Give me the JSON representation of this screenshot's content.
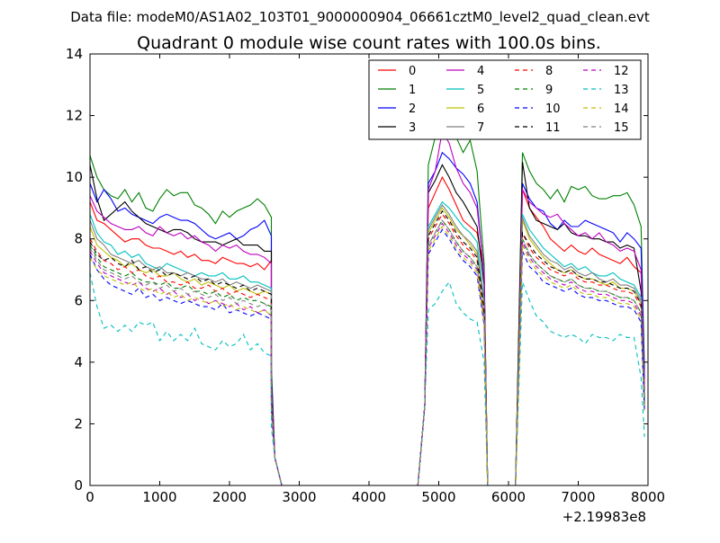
{
  "header": {
    "data_file": "Data file: modeM0/AS1A02_103T01_9000000904_06661cztM0_level2_quad_clean.evt"
  },
  "chart_data": {
    "type": "line",
    "title": "Quadrant 0 module wise count rates with 100.0s bins.",
    "xlabel": "",
    "ylabel": "",
    "x_offset_label": "+2.19983e8",
    "xlim": [
      0,
      8000
    ],
    "ylim": [
      0,
      14
    ],
    "xticks": [
      0,
      1000,
      2000,
      3000,
      4000,
      5000,
      6000,
      7000,
      8000
    ],
    "yticks": [
      0,
      2,
      4,
      6,
      8,
      10,
      12,
      14
    ],
    "grid": false,
    "legend_position": "top-right",
    "legend_columns": 4,
    "segments": [
      {
        "x_start": 0,
        "step": 100,
        "count": 27
      },
      {
        "x_end_drop": [
          2600,
          2700,
          2750
        ]
      },
      {
        "x_start": 4850,
        "step": 100,
        "count": 9
      },
      {
        "x_start": 6200,
        "step": 100,
        "count": 18
      }
    ],
    "series": [
      {
        "name": "0",
        "color": "#ff0000",
        "dash": "solid",
        "a": [
          9.2,
          8.6,
          8.5,
          8.3,
          8.1,
          7.9,
          8.0,
          8.0,
          7.8,
          7.7,
          7.7,
          7.6,
          7.5,
          7.6,
          7.4,
          7.5,
          7.3,
          7.3,
          7.2,
          7.4,
          7.3,
          7.2,
          7.2,
          7.1,
          7.2,
          7.0,
          7.3
        ],
        "b": [
          9.0,
          9.5,
          10.0,
          9.6,
          9.1,
          8.6,
          8.4,
          8.2,
          7.0
        ],
        "c": [
          9.6,
          9.0,
          8.7,
          8.4,
          8.0,
          7.8,
          7.6,
          7.8,
          7.6,
          7.5,
          7.7,
          7.5,
          7.4,
          7.3,
          7.2,
          7.4,
          7.1,
          6.9
        ]
      },
      {
        "name": "1",
        "color": "#008000",
        "dash": "solid",
        "a": [
          10.7,
          10.0,
          9.6,
          9.4,
          9.3,
          9.6,
          9.2,
          9.5,
          9.0,
          8.9,
          9.3,
          9.6,
          9.4,
          9.5,
          9.5,
          9.1,
          9.0,
          8.8,
          8.5,
          8.9,
          8.7,
          8.9,
          9.0,
          9.1,
          9.3,
          9.1,
          8.7
        ],
        "b": [
          10.4,
          11.3,
          12.5,
          11.8,
          11.3,
          10.8,
          11.2,
          10.2,
          7.2
        ],
        "c": [
          10.8,
          10.2,
          9.8,
          9.6,
          9.3,
          9.6,
          9.2,
          9.7,
          9.6,
          9.7,
          9.4,
          9.3,
          9.3,
          9.4,
          9.4,
          9.5,
          9.1,
          8.4
        ]
      },
      {
        "name": "2",
        "color": "#0000ff",
        "dash": "solid",
        "a": [
          9.8,
          9.2,
          9.6,
          9.3,
          8.9,
          9.0,
          8.8,
          8.7,
          8.6,
          8.5,
          8.7,
          8.8,
          8.7,
          8.6,
          8.6,
          8.5,
          8.3,
          8.1,
          8.0,
          8.1,
          8.2,
          8.0,
          8.1,
          8.3,
          8.4,
          8.6,
          8.1
        ],
        "b": [
          9.8,
          10.2,
          10.8,
          10.6,
          10.3,
          10.1,
          9.8,
          9.2,
          6.8
        ],
        "c": [
          9.8,
          9.3,
          9.0,
          8.9,
          8.5,
          8.3,
          8.6,
          8.4,
          8.4,
          8.6,
          8.5,
          8.4,
          8.3,
          8.2,
          7.9,
          8.2,
          8.0,
          7.7
        ]
      },
      {
        "name": "3",
        "color": "#000000",
        "dash": "solid",
        "a": [
          10.4,
          9.3,
          8.6,
          8.8,
          9.0,
          9.2,
          8.9,
          8.7,
          8.5,
          8.4,
          8.3,
          8.2,
          8.3,
          8.3,
          8.2,
          8.0,
          7.9,
          7.9,
          7.9,
          7.8,
          7.9,
          8.0,
          7.8,
          7.8,
          7.8,
          7.6,
          7.6
        ],
        "b": [
          9.5,
          9.9,
          10.4,
          10.0,
          9.5,
          9.2,
          8.8,
          8.4,
          6.5
        ],
        "c": [
          10.5,
          9.0,
          8.6,
          8.5,
          8.4,
          8.3,
          8.5,
          8.2,
          8.1,
          8.1,
          8.0,
          8.0,
          7.9,
          7.9,
          7.7,
          7.8,
          7.7,
          6.3
        ]
      },
      {
        "name": "4",
        "color": "#bf00bf",
        "dash": "solid",
        "a": [
          9.4,
          8.9,
          8.7,
          8.5,
          8.4,
          8.3,
          8.3,
          8.4,
          8.2,
          8.1,
          8.4,
          8.2,
          8.1,
          8.2,
          8.0,
          8.1,
          7.9,
          7.8,
          7.6,
          7.8,
          7.7,
          7.8,
          7.6,
          7.5,
          7.5,
          7.4,
          7.2
        ],
        "b": [
          9.6,
          10.2,
          11.5,
          11.1,
          10.3,
          9.8,
          9.5,
          9.0,
          6.9
        ],
        "c": [
          9.6,
          9.2,
          9.0,
          8.8,
          8.7,
          8.8,
          8.5,
          8.3,
          8.1,
          8.2,
          8.0,
          8.2,
          7.9,
          7.8,
          7.6,
          7.7,
          7.6,
          7.0
        ]
      },
      {
        "name": "5",
        "color": "#00bfbf",
        "dash": "solid",
        "a": [
          8.8,
          8.2,
          7.9,
          7.8,
          7.5,
          7.6,
          7.4,
          7.5,
          7.2,
          7.1,
          7.0,
          7.2,
          7.1,
          7.0,
          6.9,
          6.8,
          6.9,
          6.8,
          6.8,
          6.9,
          6.7,
          6.7,
          6.8,
          6.6,
          6.6,
          6.5,
          6.4
        ],
        "b": [
          8.4,
          8.8,
          9.2,
          9.0,
          8.7,
          8.4,
          8.2,
          7.9,
          6.0
        ],
        "c": [
          8.8,
          8.3,
          8.0,
          7.7,
          7.5,
          7.3,
          7.1,
          7.2,
          7.0,
          7.1,
          6.9,
          6.8,
          6.8,
          6.9,
          6.7,
          6.6,
          6.5,
          6.1
        ]
      },
      {
        "name": "6",
        "color": "#bfbf00",
        "dash": "solid",
        "a": [
          8.4,
          7.8,
          7.6,
          7.4,
          7.3,
          7.1,
          7.2,
          7.0,
          6.9,
          7.0,
          6.8,
          6.8,
          6.9,
          6.7,
          6.6,
          6.7,
          6.5,
          6.6,
          6.5,
          6.4,
          6.5,
          6.3,
          6.4,
          6.3,
          6.2,
          6.3,
          6.2
        ],
        "b": [
          8.2,
          8.6,
          9.0,
          8.7,
          8.3,
          8.1,
          7.8,
          7.5,
          5.8
        ],
        "c": [
          8.6,
          8.0,
          7.7,
          7.4,
          7.2,
          7.0,
          6.9,
          7.0,
          6.8,
          6.7,
          6.7,
          6.6,
          6.5,
          6.6,
          6.4,
          6.4,
          6.3,
          5.9
        ]
      },
      {
        "name": "7",
        "color": "#808080",
        "dash": "solid",
        "a": [
          8.6,
          8.0,
          7.8,
          7.5,
          7.4,
          7.3,
          7.2,
          7.3,
          7.1,
          7.0,
          7.1,
          6.9,
          6.9,
          6.8,
          6.9,
          6.8,
          6.7,
          6.7,
          6.6,
          6.7,
          6.5,
          6.6,
          6.5,
          6.4,
          6.5,
          6.4,
          6.3
        ],
        "b": [
          8.3,
          8.7,
          9.1,
          8.8,
          8.4,
          8.1,
          7.9,
          7.6,
          5.9
        ],
        "c": [
          8.7,
          8.1,
          7.8,
          7.5,
          7.3,
          7.2,
          7.0,
          7.1,
          6.9,
          6.8,
          6.9,
          6.7,
          6.6,
          6.7,
          6.5,
          6.5,
          6.4,
          6.0
        ]
      },
      {
        "name": "8",
        "color": "#ff0000",
        "dash": "dashed",
        "a": [
          8.0,
          7.6,
          7.3,
          7.2,
          7.0,
          7.1,
          6.9,
          7.0,
          6.8,
          6.7,
          6.8,
          6.6,
          6.6,
          6.5,
          6.6,
          6.4,
          6.4,
          6.5,
          6.3,
          6.4,
          6.2,
          6.3,
          6.2,
          6.1,
          6.2,
          6.1,
          6.0
        ],
        "b": [
          8.0,
          8.4,
          8.8,
          8.5,
          8.1,
          7.8,
          7.6,
          7.3,
          5.6
        ],
        "c": [
          8.2,
          7.7,
          7.4,
          7.2,
          7.0,
          6.9,
          6.8,
          6.9,
          6.7,
          6.6,
          6.6,
          6.5,
          6.5,
          6.4,
          6.3,
          6.3,
          6.2,
          5.8
        ]
      },
      {
        "name": "9",
        "color": "#008000",
        "dash": "dashed",
        "a": [
          7.8,
          7.4,
          7.1,
          7.0,
          6.9,
          6.8,
          6.9,
          6.7,
          6.6,
          6.6,
          6.5,
          6.6,
          6.4,
          6.4,
          6.5,
          6.3,
          6.3,
          6.2,
          6.3,
          6.1,
          6.2,
          6.0,
          6.1,
          6.0,
          6.0,
          5.9,
          5.8
        ],
        "b": [
          7.8,
          8.2,
          8.6,
          8.3,
          7.9,
          7.6,
          7.4,
          7.1,
          5.4
        ],
        "c": [
          8.0,
          7.5,
          7.2,
          7.0,
          6.8,
          6.7,
          6.6,
          6.7,
          6.5,
          6.4,
          6.4,
          6.3,
          6.3,
          6.2,
          6.1,
          6.1,
          6.0,
          5.6
        ]
      },
      {
        "name": "10",
        "color": "#0000ff",
        "dash": "dashed",
        "a": [
          7.5,
          7.0,
          6.7,
          6.5,
          6.4,
          6.3,
          6.2,
          6.4,
          6.1,
          6.2,
          6.0,
          6.1,
          6.0,
          5.9,
          6.0,
          5.9,
          5.8,
          5.8,
          5.7,
          5.9,
          5.6,
          5.7,
          5.6,
          5.5,
          5.6,
          5.5,
          5.4
        ],
        "b": [
          7.5,
          7.9,
          8.3,
          8.0,
          7.6,
          7.3,
          7.1,
          6.8,
          5.2
        ],
        "c": [
          7.6,
          7.1,
          6.9,
          6.6,
          6.5,
          6.4,
          6.3,
          6.4,
          6.2,
          6.1,
          6.1,
          6.0,
          6.0,
          5.9,
          5.8,
          5.8,
          5.7,
          5.3
        ]
      },
      {
        "name": "11",
        "color": "#000000",
        "dash": "dashed",
        "a": [
          7.9,
          7.5,
          7.3,
          7.4,
          7.2,
          7.1,
          7.3,
          7.0,
          7.1,
          6.9,
          7.0,
          6.8,
          6.9,
          6.8,
          6.7,
          6.8,
          6.6,
          6.7,
          6.5,
          6.6,
          6.5,
          6.4,
          6.5,
          6.3,
          6.4,
          6.3,
          6.2
        ],
        "b": [
          8.1,
          8.5,
          8.9,
          8.6,
          8.2,
          7.9,
          7.7,
          7.4,
          5.7
        ],
        "c": [
          8.2,
          7.8,
          7.5,
          7.3,
          7.1,
          7.0,
          6.9,
          7.0,
          6.8,
          6.7,
          6.7,
          6.6,
          6.6,
          6.5,
          6.4,
          6.4,
          6.3,
          5.9
        ]
      },
      {
        "name": "12",
        "color": "#bf00bf",
        "dash": "dashed",
        "a": [
          7.6,
          7.2,
          6.9,
          6.8,
          6.7,
          6.6,
          6.5,
          6.6,
          6.4,
          6.3,
          6.4,
          6.2,
          6.3,
          6.1,
          6.2,
          6.0,
          6.1,
          5.9,
          6.0,
          5.9,
          5.8,
          5.9,
          5.7,
          5.8,
          5.6,
          5.7,
          5.5
        ],
        "b": [
          7.7,
          8.1,
          8.5,
          8.2,
          7.8,
          7.5,
          7.3,
          7.0,
          5.3
        ],
        "c": [
          7.9,
          7.4,
          7.1,
          6.9,
          6.7,
          6.6,
          6.5,
          6.6,
          6.4,
          6.3,
          6.3,
          6.2,
          6.2,
          6.1,
          6.0,
          6.0,
          5.9,
          5.5
        ]
      },
      {
        "name": "13",
        "color": "#00bfbf",
        "dash": "dashed",
        "a": [
          6.9,
          5.8,
          5.1,
          5.2,
          5.0,
          5.2,
          5.0,
          5.3,
          5.2,
          5.3,
          4.7,
          5.0,
          4.7,
          4.9,
          4.7,
          5.1,
          4.6,
          4.5,
          4.4,
          4.7,
          4.5,
          4.6,
          4.9,
          4.4,
          4.6,
          4.3,
          4.2
        ],
        "b": [
          5.7,
          5.9,
          6.3,
          6.6,
          5.9,
          5.6,
          5.4,
          5.3,
          4.0
        ],
        "c": [
          6.6,
          6.0,
          5.5,
          5.3,
          5.0,
          4.9,
          4.8,
          4.9,
          4.8,
          4.6,
          4.9,
          4.8,
          4.8,
          4.7,
          4.9,
          4.8,
          4.8,
          3.5
        ]
      },
      {
        "name": "14",
        "color": "#bfbf00",
        "dash": "dashed",
        "a": [
          7.4,
          7.0,
          6.8,
          6.7,
          6.6,
          6.5,
          6.6,
          6.4,
          6.3,
          6.4,
          6.2,
          6.3,
          6.1,
          6.2,
          6.0,
          6.1,
          6.0,
          5.9,
          6.0,
          5.8,
          5.9,
          5.7,
          5.8,
          5.7,
          5.6,
          5.7,
          5.5
        ],
        "b": [
          7.6,
          8.0,
          8.4,
          8.1,
          7.7,
          7.4,
          7.2,
          6.9,
          5.3
        ],
        "c": [
          7.8,
          7.3,
          7.0,
          6.8,
          6.6,
          6.5,
          6.4,
          6.5,
          6.3,
          6.2,
          6.2,
          6.1,
          6.1,
          6.0,
          5.9,
          5.9,
          5.8,
          5.4
        ]
      },
      {
        "name": "15",
        "color": "#808080",
        "dash": "dashed",
        "a": [
          7.7,
          7.3,
          7.0,
          6.9,
          6.8,
          6.7,
          6.8,
          6.6,
          6.5,
          6.6,
          6.4,
          6.5,
          6.3,
          6.4,
          6.2,
          6.3,
          6.2,
          6.1,
          6.2,
          6.0,
          6.1,
          5.9,
          6.0,
          5.9,
          5.8,
          5.9,
          5.7
        ],
        "b": [
          7.8,
          8.2,
          8.6,
          8.3,
          7.9,
          7.6,
          7.4,
          7.1,
          5.4
        ],
        "c": [
          8.0,
          7.5,
          7.2,
          7.0,
          6.8,
          6.7,
          6.6,
          6.7,
          6.5,
          6.4,
          6.4,
          6.3,
          6.3,
          6.2,
          6.1,
          6.1,
          6.0,
          5.6
        ]
      }
    ]
  }
}
